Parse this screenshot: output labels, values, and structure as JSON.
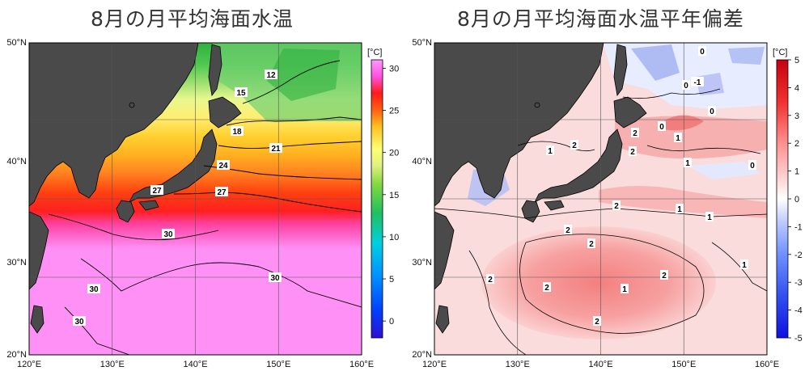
{
  "panels": [
    {
      "title": "8月の月平均海面水温",
      "unit": "[°C]",
      "lat_labels": [
        "50°N",
        "40°N",
        "30°N",
        "20°N"
      ],
      "lon_labels": [
        "120°E",
        "130°E",
        "140°E",
        "150°E",
        "160°E"
      ],
      "colorbar": {
        "ticks": [
          "30",
          "25",
          "20",
          "15",
          "10",
          "5",
          "0"
        ],
        "values": [
          30,
          25,
          20,
          15,
          10,
          5,
          0
        ],
        "range": [
          -2,
          31
        ],
        "colors": [
          "#2010d0",
          "#0040ff",
          "#00b0ff",
          "#00d8c0",
          "#20c060",
          "#70d040",
          "#d0f080",
          "#ffff80",
          "#ffe030",
          "#ffb020",
          "#ff5010",
          "#ff2020",
          "#ff60ff",
          "#ff90ff"
        ]
      },
      "contour_labels": [
        "12",
        "15",
        "18",
        "21",
        "24",
        "27",
        "27",
        "30",
        "30",
        "30",
        "30"
      ]
    },
    {
      "title": "8月の月平均海面水温平年偏差",
      "unit": "[°C]",
      "lat_labels": [
        "50°N",
        "40°N",
        "30°N",
        "20°N"
      ],
      "lon_labels": [
        "120°E",
        "130°E",
        "140°E",
        "150°E",
        "160°E"
      ],
      "colorbar": {
        "ticks": [
          "5",
          "4",
          "3",
          "2",
          "1",
          "0",
          "-1",
          "-2",
          "-3",
          "-4",
          "-5"
        ],
        "values": [
          5,
          4,
          3,
          2,
          1,
          0,
          -1,
          -2,
          -3,
          -4,
          -5
        ],
        "range": [
          -5,
          5
        ],
        "colors": [
          "#1010e0",
          "#3050f0",
          "#6080ff",
          "#90a8ff",
          "#c8d4ff",
          "#ffffff",
          "#ffd8d8",
          "#ffb0b0",
          "#ff7070",
          "#f03030",
          "#d00010"
        ]
      },
      "contour_labels": [
        "0",
        "0",
        "-1",
        "0",
        "1",
        "2",
        "2",
        "1",
        "0",
        "1",
        "0",
        "2",
        "1",
        "1",
        "2",
        "2",
        "2",
        "1",
        "2",
        "2",
        "2",
        "1",
        "2"
      ]
    }
  ],
  "colors": {
    "land": "#4a4a4a",
    "coast": "#000000",
    "grid": "#555555"
  }
}
